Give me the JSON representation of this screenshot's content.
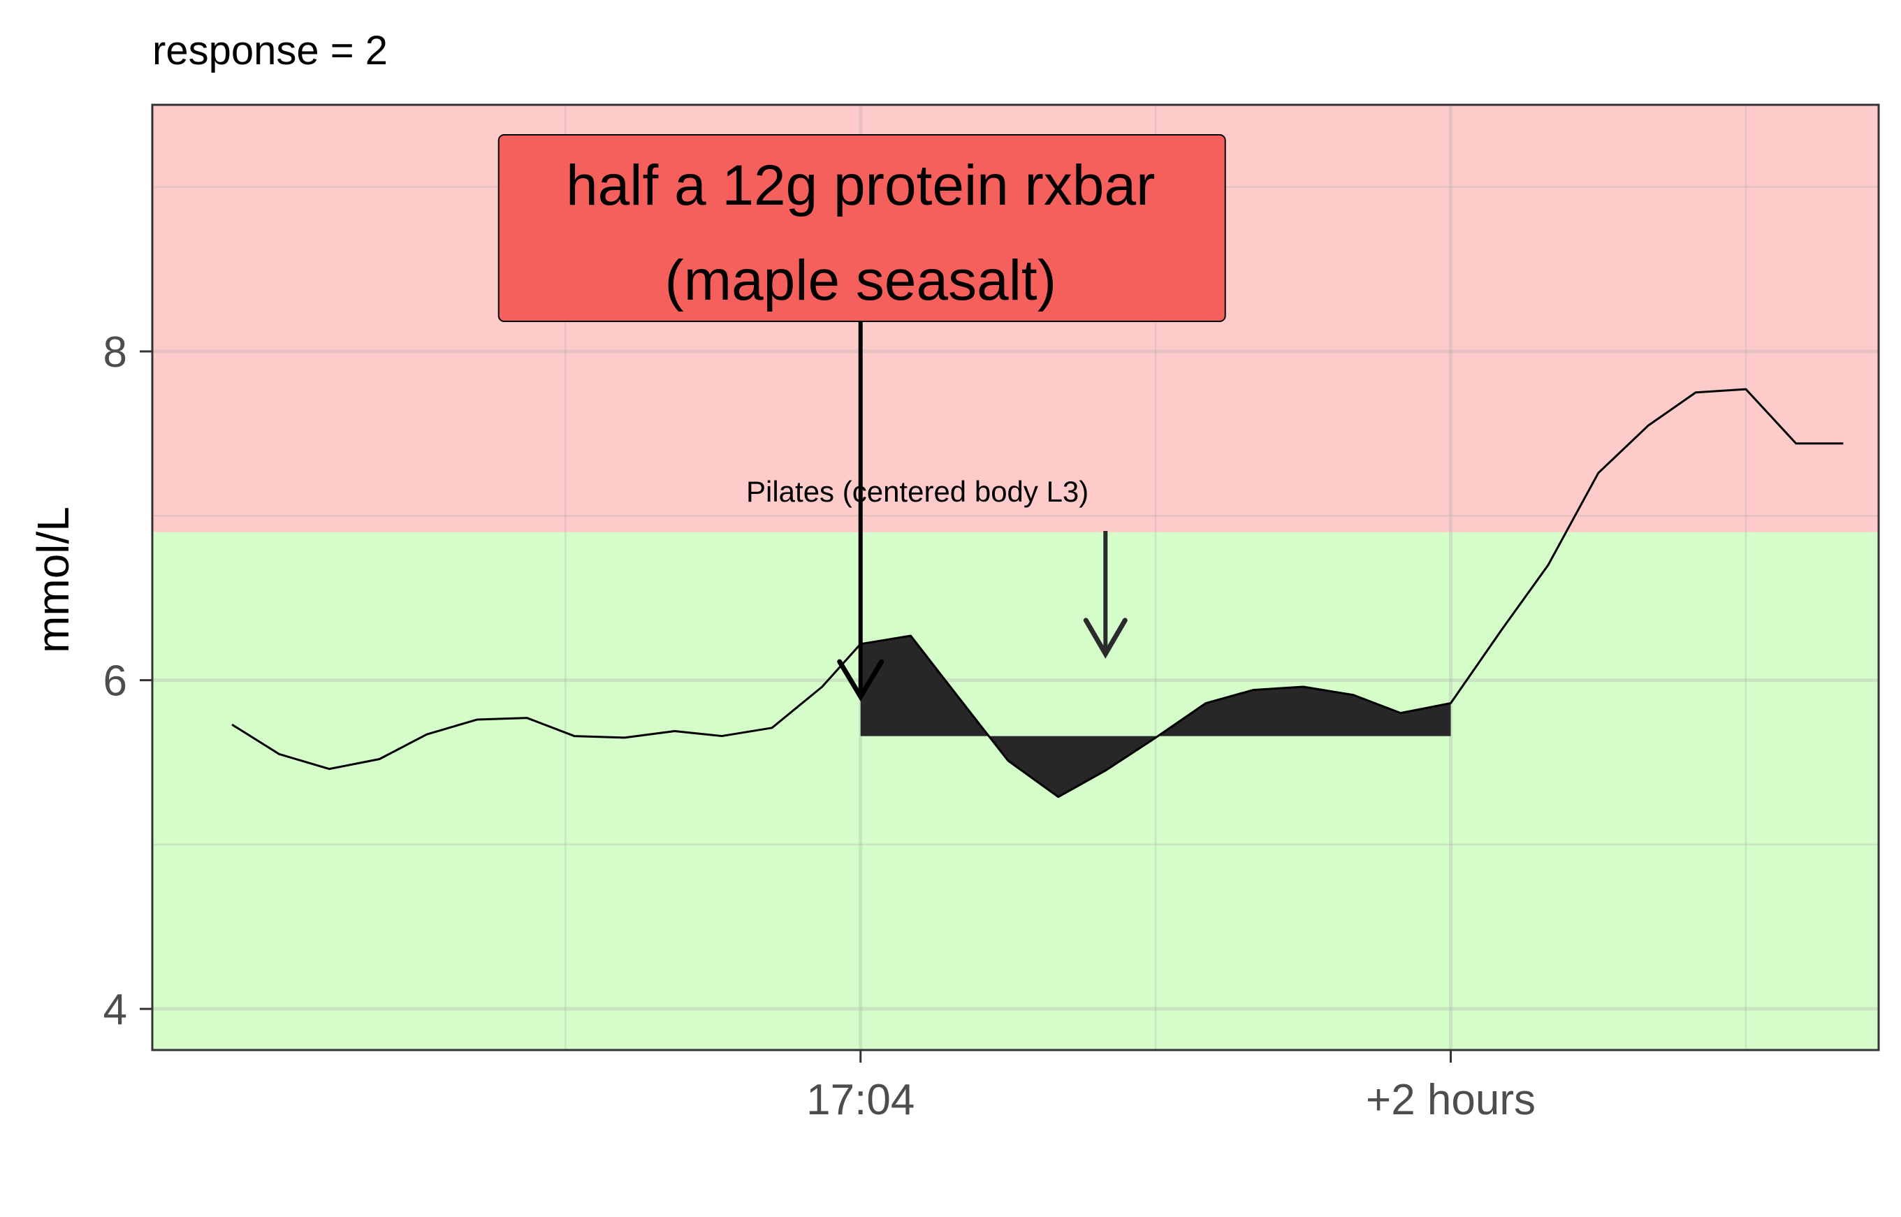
{
  "chart_data": {
    "type": "line",
    "title": "response = 2",
    "ylabel": "mmol/L",
    "xlabel": "",
    "ylim": [
      3.75,
      9.5
    ],
    "xlim": [
      -2.4,
      3.45
    ],
    "yticks": [
      4,
      6,
      8
    ],
    "xticks": [
      {
        "value": 0,
        "label": "17:04"
      },
      {
        "value": 2,
        "label": "+2 hours"
      }
    ],
    "grid": true,
    "zones": [
      {
        "from": 3.75,
        "to": 6.9,
        "color": "#d4fdca"
      },
      {
        "from": 6.9,
        "to": 9.5,
        "color": "#fecbcb"
      }
    ],
    "series": [
      {
        "x": [
          -2.13,
          -1.97,
          -1.8,
          -1.63,
          -1.47,
          -1.3,
          -1.13,
          -0.97,
          -0.8,
          -0.63,
          -0.47,
          -0.3,
          -0.13,
          0.0,
          0.17,
          0.33,
          0.5,
          0.67,
          0.83,
          1.0,
          1.17,
          1.33,
          1.5,
          1.67,
          1.83,
          2.0,
          2.17,
          2.33,
          2.5,
          2.67,
          2.83,
          3.0,
          3.17,
          3.33
        ],
        "y": [
          5.73,
          5.55,
          5.46,
          5.52,
          5.67,
          5.76,
          5.77,
          5.66,
          5.65,
          5.69,
          5.66,
          5.71,
          5.96,
          6.22,
          6.27,
          5.9,
          5.51,
          5.29,
          5.45,
          5.65,
          5.86,
          5.94,
          5.96,
          5.91,
          5.8,
          5.86,
          6.3,
          6.7,
          7.26,
          7.55,
          7.75,
          7.77,
          7.44,
          7.44
        ],
        "color": "#000000"
      }
    ],
    "response_area": {
      "baseline": 5.66,
      "x_from": 0,
      "x_to": 2,
      "color": "#272727"
    },
    "annotations": [
      {
        "text_lines": [
          "half a 12g protein rxbar",
          "(maple seasalt)"
        ],
        "x": 0,
        "arrow_tip_y": 5.9,
        "fill": "#f5605d"
      },
      {
        "text": "Pilates (centered body L3)",
        "x": 0.83,
        "arrow_tip_y": 6.16
      }
    ]
  }
}
